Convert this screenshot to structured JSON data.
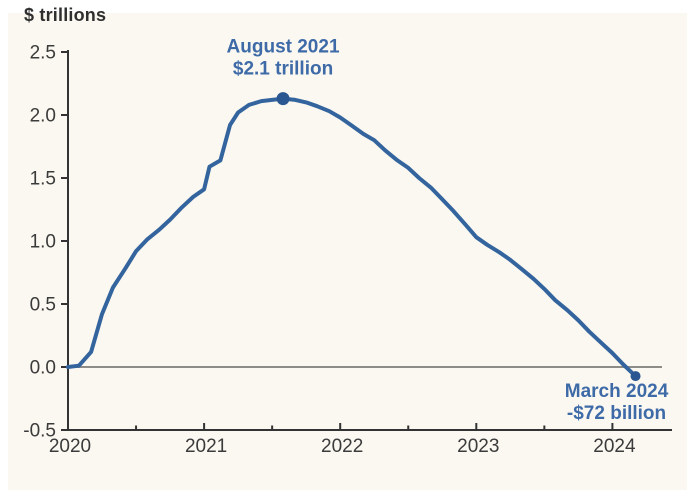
{
  "page": {
    "background": "#ffffff",
    "panel_background": "#faf8f0"
  },
  "chart_data": {
    "type": "line",
    "title": "",
    "ylabel": "$ trillions",
    "xlabel": "",
    "xlim": [
      2020,
      2024.44
    ],
    "ylim": [
      -0.5,
      2.5
    ],
    "grid": false,
    "zero_line": true,
    "legend": "none",
    "colors": {
      "line": "#34649e",
      "marker": "#2a5692",
      "annotation_text": "#3e6ba8",
      "axis": "#333333",
      "tick_label": "#3b3b3b",
      "zero_line": "#8e8c87",
      "ylabel_text": "#2f2f2f"
    },
    "y_ticks": [
      {
        "label": "2.5",
        "value": 2.5
      },
      {
        "label": "2.0",
        "value": 2.0
      },
      {
        "label": "1.5",
        "value": 1.5
      },
      {
        "label": "1.0",
        "value": 1.0
      },
      {
        "label": "0.5",
        "value": 0.5
      },
      {
        "label": "0.0",
        "value": 0.0
      },
      {
        "label": "-0.5",
        "value": -0.5
      }
    ],
    "x_ticks": [
      {
        "label": "2020",
        "value": 2020
      },
      {
        "label": "2021",
        "value": 2021
      },
      {
        "label": "2022",
        "value": 2022
      },
      {
        "label": "2023",
        "value": 2023
      },
      {
        "label": "2024",
        "value": 2024
      }
    ],
    "x_minor_ticks": [
      2020.5,
      2021.5,
      2022.5,
      2023.5
    ],
    "series": [
      {
        "color": "#34649e",
        "points": [
          [
            2020.0,
            0.0
          ],
          [
            2020.08,
            0.01
          ],
          [
            2020.17,
            0.12
          ],
          [
            2020.25,
            0.42
          ],
          [
            2020.33,
            0.63
          ],
          [
            2020.42,
            0.78
          ],
          [
            2020.5,
            0.92
          ],
          [
            2020.58,
            1.01
          ],
          [
            2020.67,
            1.09
          ],
          [
            2020.75,
            1.17
          ],
          [
            2020.83,
            1.26
          ],
          [
            2020.92,
            1.35
          ],
          [
            2021.0,
            1.41
          ],
          [
            2021.04,
            1.59
          ],
          [
            2021.12,
            1.64
          ],
          [
            2021.19,
            1.92
          ],
          [
            2021.25,
            2.02
          ],
          [
            2021.33,
            2.08
          ],
          [
            2021.42,
            2.11
          ],
          [
            2021.5,
            2.12
          ],
          [
            2021.58,
            2.13
          ],
          [
            2021.67,
            2.12
          ],
          [
            2021.75,
            2.1
          ],
          [
            2021.83,
            2.07
          ],
          [
            2021.92,
            2.03
          ],
          [
            2022.0,
            1.98
          ],
          [
            2022.08,
            1.92
          ],
          [
            2022.17,
            1.85
          ],
          [
            2022.25,
            1.8
          ],
          [
            2022.33,
            1.72
          ],
          [
            2022.42,
            1.64
          ],
          [
            2022.5,
            1.58
          ],
          [
            2022.58,
            1.5
          ],
          [
            2022.67,
            1.42
          ],
          [
            2022.75,
            1.33
          ],
          [
            2022.83,
            1.24
          ],
          [
            2022.92,
            1.13
          ],
          [
            2023.0,
            1.03
          ],
          [
            2023.08,
            0.97
          ],
          [
            2023.17,
            0.91
          ],
          [
            2023.25,
            0.85
          ],
          [
            2023.33,
            0.78
          ],
          [
            2023.42,
            0.7
          ],
          [
            2023.5,
            0.62
          ],
          [
            2023.58,
            0.53
          ],
          [
            2023.67,
            0.45
          ],
          [
            2023.75,
            0.37
          ],
          [
            2023.83,
            0.28
          ],
          [
            2023.92,
            0.19
          ],
          [
            2024.0,
            0.11
          ],
          [
            2024.08,
            0.02
          ],
          [
            2024.17,
            -0.072
          ]
        ]
      }
    ],
    "annotations": [
      {
        "lines": [
          "August 2021",
          "$2.1 trillion"
        ],
        "x": 2021.58,
        "y": 2.13,
        "position": "above",
        "marker_radius": 6.5,
        "label_dx": 0
      },
      {
        "lines": [
          "March 2024",
          "-$72 billion"
        ],
        "x": 2024.17,
        "y": -0.072,
        "position": "below",
        "marker_radius": 5,
        "label_dx": -19
      }
    ]
  }
}
